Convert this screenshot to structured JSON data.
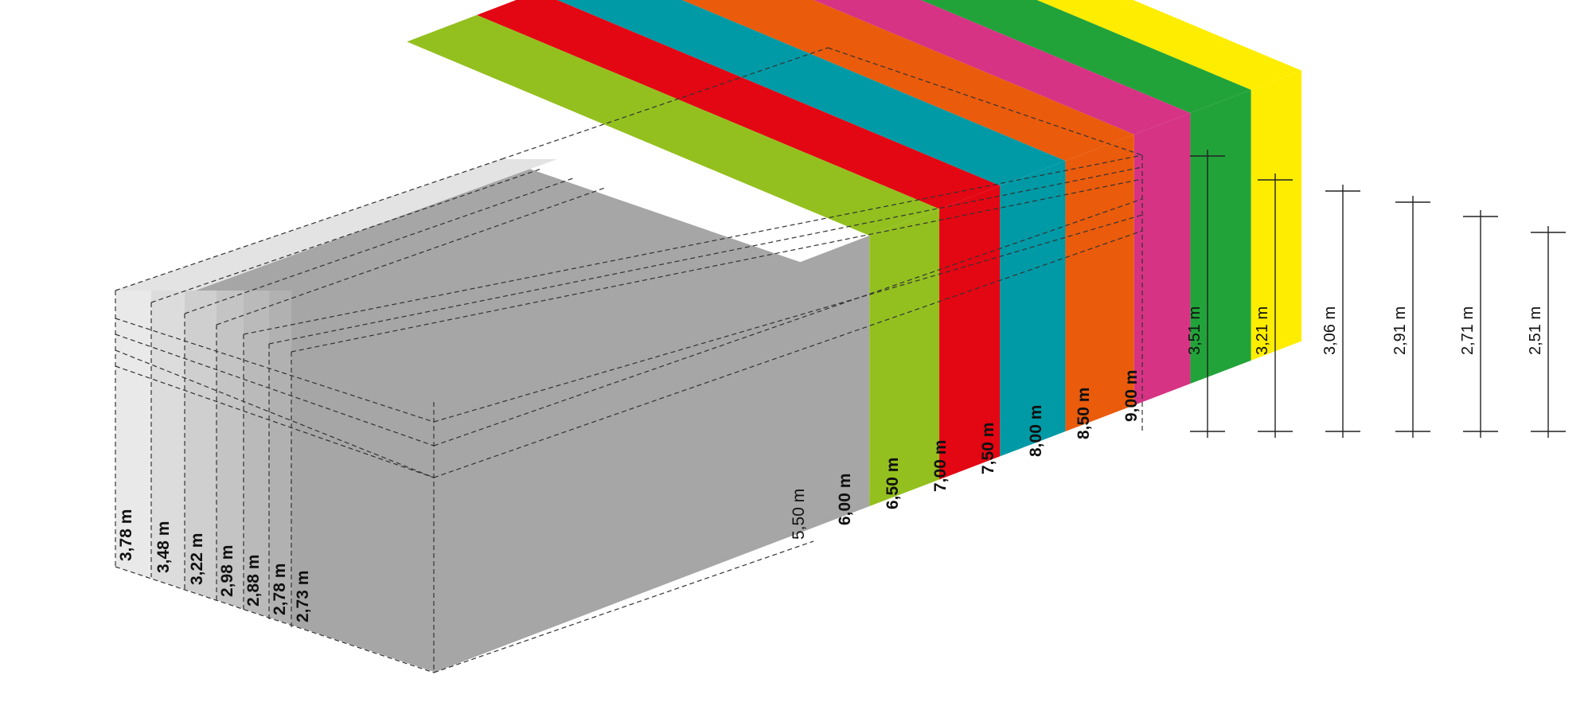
{
  "width_labels": [
    "5,50 m",
    "6,00 m",
    "6,50 m",
    "7,00 m",
    "7,50 m",
    "8,00 m",
    "8,50 m",
    "9,00 m"
  ],
  "width_colors": [
    "#a6a6a6",
    "#93c01f",
    "#e30613",
    "#009aa6",
    "#ea5b0c",
    "#d63384",
    "#22a33a",
    "#ffed00"
  ],
  "length_labels": [
    "3,78 m",
    "3,48 m",
    "3,22 m",
    "2,98 m",
    "2,88 m",
    "2,78 m",
    "2,73 m"
  ],
  "length_shades": [
    "#e9e9e9",
    "#dcdcdc",
    "#cfcfcf",
    "#c4c4c4",
    "#bababa",
    "#b1b1b1",
    "#a6a6a6"
  ],
  "height_labels": [
    "3,51 m",
    "3,21 m",
    "3,06 m",
    "2,91 m",
    "2,71 m",
    "2,51 m"
  ]
}
